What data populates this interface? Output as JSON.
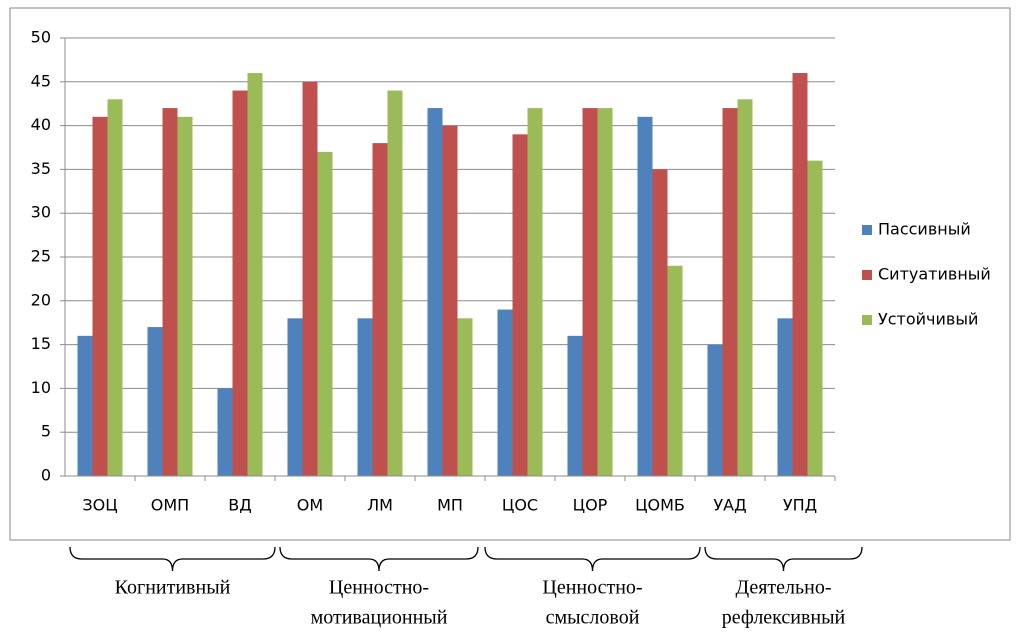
{
  "chart_data": {
    "type": "bar",
    "categories": [
      "ЗОЦ",
      "ОМП",
      "ВД",
      "ОМ",
      "ЛМ",
      "МП",
      "ЦОС",
      "ЦОР",
      "ЦОМБ",
      "УАД",
      "УПД"
    ],
    "series": [
      {
        "name": "Пассивный",
        "color": "#4f81bd",
        "values": [
          16,
          17,
          10,
          18,
          18,
          42,
          19,
          16,
          41,
          15,
          18
        ]
      },
      {
        "name": "Ситуативный",
        "color": "#c0504d",
        "values": [
          41,
          42,
          44,
          45,
          38,
          40,
          39,
          42,
          35,
          42,
          46
        ]
      },
      {
        "name": "Устойчивый",
        "color": "#9bbb59",
        "values": [
          43,
          41,
          46,
          37,
          44,
          18,
          42,
          42,
          24,
          43,
          36
        ]
      }
    ],
    "ylim": [
      0,
      50
    ],
    "yticks": [
      0,
      5,
      10,
      15,
      20,
      25,
      30,
      35,
      40,
      45,
      50
    ],
    "grid": true,
    "legend": "right",
    "groups": [
      {
        "lines": [
          "Когнитивный"
        ]
      },
      {
        "lines": [
          "Ценностно-",
          "мотивационный"
        ]
      },
      {
        "lines": [
          "Ценностно-",
          "смысловой"
        ]
      },
      {
        "lines": [
          "Деятельно-",
          "рефлексивный"
        ]
      }
    ]
  }
}
